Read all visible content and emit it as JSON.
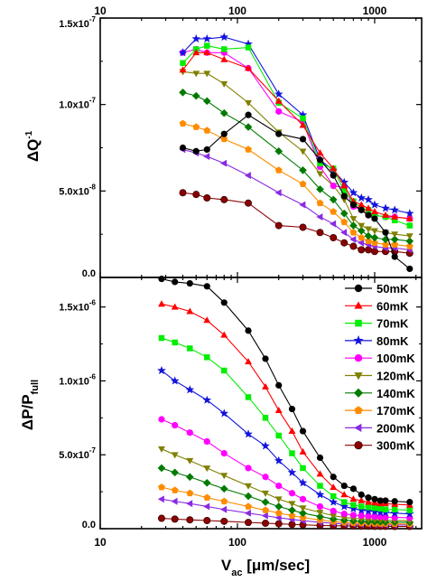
{
  "x_tick_labels": [
    "10",
    "100",
    "1000"
  ],
  "series_names": [
    "50mK",
    "60mK",
    "70mK",
    "80mK",
    "100mK",
    "120mK",
    "140mK",
    "170mK",
    "200mK",
    "300mK"
  ],
  "colors": {
    "50mK": "#000000",
    "60mK": "#ff0000",
    "70mK": "#00ee00",
    "80mK": "#1414dc",
    "100mK": "#ff00ff",
    "120mK": "#808000",
    "140mK": "#007a00",
    "170mK": "#ff8c00",
    "200mK": "#8a2be2",
    "300mK": "#8b0000"
  },
  "markers": {
    "50mK": "circle",
    "60mK": "triangle-up",
    "70mK": "square",
    "80mK": "star",
    "100mK": "circle",
    "120mK": "triangle-down",
    "140mK": "diamond",
    "170mK": "pentagon",
    "200mK": "triangle-left",
    "300mK": "sphere"
  },
  "chart_data": [
    {
      "type": "line",
      "xscale": "log",
      "xlim": [
        10,
        2200
      ],
      "ylim": [
        0,
        1.5e-07
      ],
      "ylabel_main": "ΔQ",
      "ylabel_sup": "-1",
      "xlabel": "",
      "y_tick_labels": [
        {
          "value": 0,
          "mant": "0.0",
          "exp": ""
        },
        {
          "value": 5e-08,
          "mant": "5.0x10",
          "exp": "-8"
        },
        {
          "value": 1e-07,
          "mant": "1.0x10",
          "exp": "-7"
        },
        {
          "value": 1.5e-07,
          "mant": "1.5x10",
          "exp": "-7"
        }
      ],
      "x": [
        40,
        50,
        60,
        80,
        120,
        200,
        300,
        400,
        500,
        600,
        700,
        800,
        900,
        1000,
        1200,
        1400,
        1800
      ],
      "series": [
        {
          "name": "50mK",
          "values": [
            7.5e-08,
            7.3e-08,
            7.4e-08,
            8.3e-08,
            9.4e-08,
            8.3e-08,
            8e-08,
            6.8e-08,
            5.9e-08,
            4.7e-08,
            4.2e-08,
            3.9e-08,
            3.6e-08,
            3.4e-08,
            2.6e-08,
            1.2e-08,
            5e-09
          ]
        },
        {
          "name": "60mK",
          "values": [
            1.2e-07,
            1.3e-07,
            1.3e-07,
            1.26e-07,
            1.21e-07,
            1.02e-07,
            8.8e-08,
            7.2e-08,
            6.3e-08,
            5.3e-08,
            4.4e-08,
            4.2e-08,
            4e-08,
            3.8e-08,
            3.6e-08,
            3.5e-08,
            3.4e-08
          ]
        },
        {
          "name": "70mK",
          "values": [
            1.24e-07,
            1.32e-07,
            1.34e-07,
            1.32e-07,
            1.33e-07,
            1.01e-07,
            9.2e-08,
            6.6e-08,
            6.3e-08,
            5e-08,
            4.4e-08,
            4e-08,
            3.9e-08,
            3.6e-08,
            3.5e-08,
            3.3e-08,
            3e-08
          ]
        },
        {
          "name": "80mK",
          "values": [
            1.3e-07,
            1.38e-07,
            1.38e-07,
            1.39e-07,
            1.35e-07,
            1.06e-07,
            9.4e-08,
            6.8e-08,
            6.2e-08,
            5.5e-08,
            4.9e-08,
            4.6e-08,
            4.5e-08,
            4.2e-08,
            4e-08,
            3.9e-08,
            3.7e-08
          ]
        },
        {
          "name": "100mK",
          "values": [
            1.3e-07,
            1.32e-07,
            1.3e-07,
            1.3e-07,
            1.21e-07,
            9.6e-08,
            9e-08,
            6.4e-08,
            5.3e-08,
            5.2e-08,
            4.1e-08,
            3.9e-08,
            3.6e-08,
            3.6e-08,
            3.5e-08,
            3.5e-08,
            3.4e-08
          ]
        },
        {
          "name": "120mK",
          "values": [
            1.19e-07,
            1.18e-07,
            1.18e-07,
            1.12e-07,
            1.01e-07,
            8.4e-08,
            7.3e-08,
            6e-08,
            5.3e-08,
            4.5e-08,
            3.4e-08,
            3e-08,
            2.8e-08,
            2.7e-08,
            2.6e-08,
            2.5e-08,
            2.4e-08
          ]
        },
        {
          "name": "140mK",
          "values": [
            1.07e-07,
            1.05e-07,
            1.02e-07,
            9.5e-08,
            8.7e-08,
            7.3e-08,
            6.2e-08,
            5.1e-08,
            4.5e-08,
            3.7e-08,
            3e-08,
            2.7e-08,
            2.4e-08,
            2.3e-08,
            2.2e-08,
            2.2e-08,
            2.1e-08
          ]
        },
        {
          "name": "170mK",
          "values": [
            8.9e-08,
            8.7e-08,
            8.5e-08,
            8e-08,
            7.4e-08,
            6.2e-08,
            5.4e-08,
            4.3e-08,
            3.8e-08,
            3.2e-08,
            2.6e-08,
            2.3e-08,
            2.1e-08,
            2e-08,
            1.9e-08,
            1.9e-08,
            1.8e-08
          ]
        },
        {
          "name": "200mK",
          "values": [
            7.4e-08,
            7.2e-08,
            7e-08,
            6.6e-08,
            5.9e-08,
            4.9e-08,
            4.2e-08,
            3.5e-08,
            3.1e-08,
            2.6e-08,
            2.2e-08,
            2e-08,
            1.9e-08,
            1.8e-08,
            1.7e-08,
            1.7e-08,
            1.6e-08
          ]
        },
        {
          "name": "300mK",
          "values": [
            4.9e-08,
            4.8e-08,
            4.6e-08,
            4.5e-08,
            4.3e-08,
            3e-08,
            2.9e-08,
            2.6e-08,
            2.3e-08,
            2e-08,
            1.8e-08,
            1.6e-08,
            1.6e-08,
            1.5e-08,
            1.5e-08,
            1.5e-08,
            1.4e-08
          ]
        }
      ]
    },
    {
      "type": "line",
      "xscale": "log",
      "xlim": [
        10,
        2200
      ],
      "ylim": [
        0,
        1.7e-06
      ],
      "ylabel_main": "ΔP/P",
      "ylabel_sub": "full",
      "xlabel_main": "V",
      "xlabel_sub": "ac",
      "xlabel_unit": " [μm/sec]",
      "legend": "right",
      "y_tick_labels": [
        {
          "value": 0,
          "mant": "0.0",
          "exp": ""
        },
        {
          "value": 5e-07,
          "mant": "5.0x10",
          "exp": "-7"
        },
        {
          "value": 1e-06,
          "mant": "1.0x10",
          "exp": "-6"
        },
        {
          "value": 1.5e-06,
          "mant": "1.5x10",
          "exp": "-6"
        }
      ],
      "x": [
        28,
        35,
        45,
        60,
        80,
        120,
        160,
        200,
        250,
        300,
        400,
        500,
        600,
        700,
        800,
        900,
        1000,
        1100,
        1200,
        1400,
        1800
      ],
      "series": [
        {
          "name": "50mK",
          "values": [
            1.69e-06,
            1.67e-06,
            1.66e-06,
            1.64e-06,
            1.53e-06,
            1.34e-06,
            1.15e-06,
            9.7e-07,
            8.1e-07,
            6.6e-07,
            4.8e-07,
            3.5e-07,
            2.9e-07,
            2.7e-07,
            2.3e-07,
            2.1e-07,
            2e-07,
            1.9e-07,
            1.9e-07,
            1.85e-07,
            1.8e-07
          ]
        },
        {
          "name": "60mK",
          "values": [
            1.52e-06,
            1.5e-06,
            1.47e-06,
            1.41e-06,
            1.31e-06,
            1.13e-06,
            9.6e-07,
            8e-07,
            6.6e-07,
            5.2e-07,
            3.7e-07,
            2.8e-07,
            2.3e-07,
            2e-07,
            1.9e-07,
            1.8e-07,
            1.75e-07,
            1.7e-07,
            1.7e-07,
            1.65e-07,
            1.6e-07
          ]
        },
        {
          "name": "70mK",
          "values": [
            1.29e-06,
            1.26e-06,
            1.22e-06,
            1.16e-06,
            1.07e-06,
            8.9e-07,
            7.5e-07,
            6.3e-07,
            5.1e-07,
            4.1e-07,
            2.9e-07,
            2.2e-07,
            1.8e-07,
            1.6e-07,
            1.5e-07,
            1.45e-07,
            1.4e-07,
            1.35e-07,
            1.3e-07,
            1.3e-07,
            1.25e-07
          ]
        },
        {
          "name": "80mK",
          "values": [
            1.07e-06,
            1e-06,
            9.4e-07,
            8.7e-07,
            7.8e-07,
            6.4e-07,
            5.6e-07,
            4.6e-07,
            3.8e-07,
            3.1e-07,
            2.3e-07,
            1.8e-07,
            1.5e-07,
            1.35e-07,
            1.25e-07,
            1.2e-07,
            1.15e-07,
            1.1e-07,
            1.1e-07,
            1.05e-07,
            1e-07
          ]
        },
        {
          "name": "100mK",
          "values": [
            7.4e-07,
            7e-07,
            6.5e-07,
            5.9e-07,
            5.1e-07,
            4.1e-07,
            3.5e-07,
            2.9e-07,
            2.4e-07,
            2e-07,
            1.5e-07,
            1.2e-07,
            1e-07,
            9.2e-08,
            8.8e-08,
            8.5e-08,
            8.2e-08,
            8e-08,
            7.8e-08,
            7.6e-08,
            7.4e-08
          ]
        },
        {
          "name": "120mK",
          "values": [
            5.4e-07,
            5e-07,
            4.6e-07,
            4.1e-07,
            3.6e-07,
            2.9e-07,
            2.4e-07,
            2e-07,
            1.7e-07,
            1.4e-07,
            1.1e-07,
            8.8e-08,
            7.6e-08,
            7e-08,
            6.6e-08,
            6.3e-08,
            6.1e-08,
            5.9e-08,
            5.8e-08,
            5.6e-08,
            5.4e-08
          ]
        },
        {
          "name": "140mK",
          "values": [
            4.1e-07,
            3.8e-07,
            3.5e-07,
            3.1e-07,
            2.7e-07,
            2.2e-07,
            1.8e-07,
            1.5e-07,
            1.25e-07,
            1.05e-07,
            8.2e-08,
            6.6e-08,
            5.8e-08,
            5.3e-08,
            5e-08,
            4.8e-08,
            4.7e-08,
            4.6e-08,
            4.5e-08,
            4.4e-08,
            4.3e-08
          ]
        },
        {
          "name": "170mK",
          "values": [
            2.8e-07,
            2.6e-07,
            2.4e-07,
            2.1e-07,
            1.85e-07,
            1.5e-07,
            1.25e-07,
            1.05e-07,
            8.8e-08,
            7.5e-08,
            5.9e-08,
            4.8e-08,
            4.2e-08,
            3.9e-08,
            3.7e-08,
            3.6e-08,
            3.5e-08,
            3.4e-08,
            3.4e-08,
            3.3e-08,
            3.2e-08
          ]
        },
        {
          "name": "200mK",
          "values": [
            2e-07,
            1.85e-07,
            1.7e-07,
            1.5e-07,
            1.3e-07,
            1.05e-07,
            8.8e-08,
            7.4e-08,
            6.3e-08,
            5.4e-08,
            4.3e-08,
            3.6e-08,
            3.2e-08,
            3e-08,
            2.9e-08,
            2.8e-08,
            2.7e-08,
            2.6e-08,
            2.6e-08,
            2.5e-08,
            2.5e-08
          ]
        },
        {
          "name": "300mK",
          "values": [
            7e-08,
            6.5e-08,
            6e-08,
            5.5e-08,
            5e-08,
            4.2e-08,
            3.7e-08,
            3.3e-08,
            2.9e-08,
            2.6e-08,
            2.2e-08,
            2e-08,
            1.9e-08,
            1.8e-08,
            1.7e-08,
            1.7e-08,
            1.6e-08,
            1.6e-08,
            1.6e-08,
            1.5e-08,
            1.5e-08
          ]
        }
      ]
    }
  ]
}
